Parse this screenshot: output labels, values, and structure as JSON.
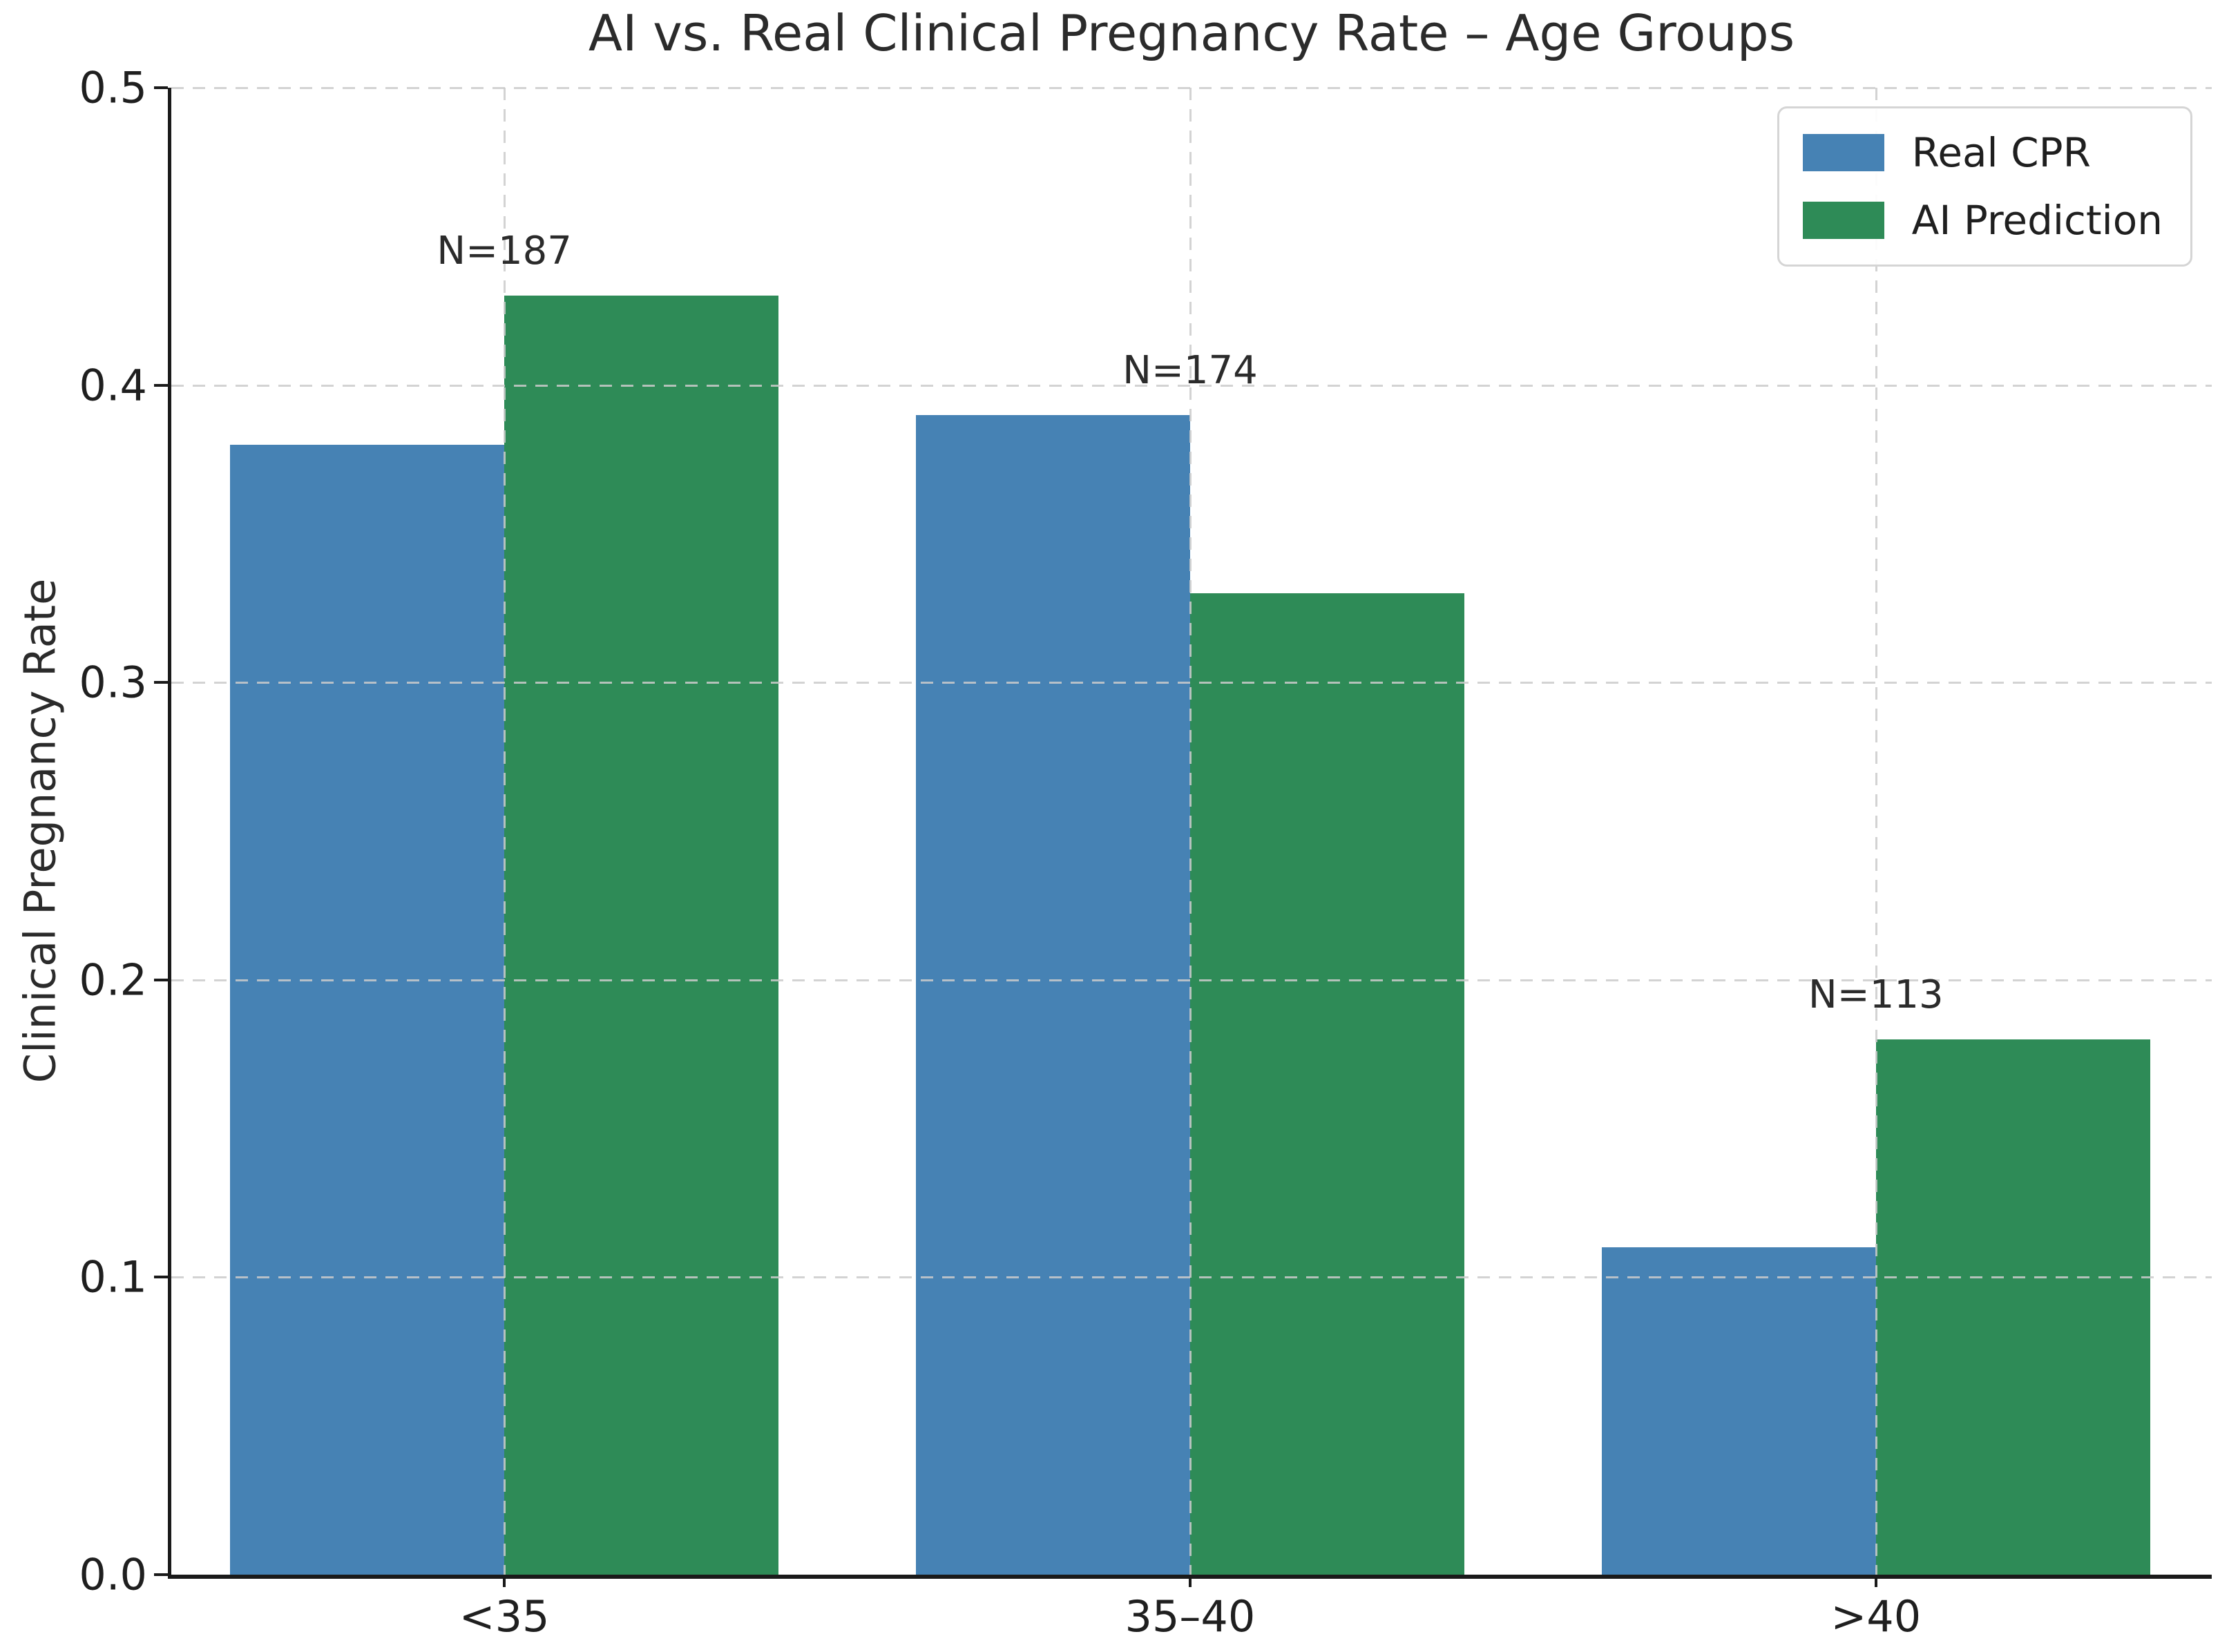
{
  "chart_data": {
    "type": "bar",
    "title": "AI vs. Real Clinical Pregnancy Rate – Age Groups",
    "xlabel": "",
    "ylabel": "Clinical Pregnancy Rate",
    "categories": [
      "<35",
      "35–40",
      ">40"
    ],
    "series": [
      {
        "name": "Real CPR",
        "color": "#4682B4",
        "values": [
          0.38,
          0.39,
          0.11
        ]
      },
      {
        "name": "AI Prediction",
        "color": "#2E8B57",
        "values": [
          0.43,
          0.33,
          0.18
        ]
      }
    ],
    "annotations": [
      "N=187",
      "N=174",
      "N=113"
    ],
    "ylim": [
      0.0,
      0.5
    ],
    "yticks": [
      "0.0",
      "0.1",
      "0.2",
      "0.3",
      "0.4",
      "0.5"
    ],
    "grid": "dashed",
    "legend_position": "upper right"
  }
}
